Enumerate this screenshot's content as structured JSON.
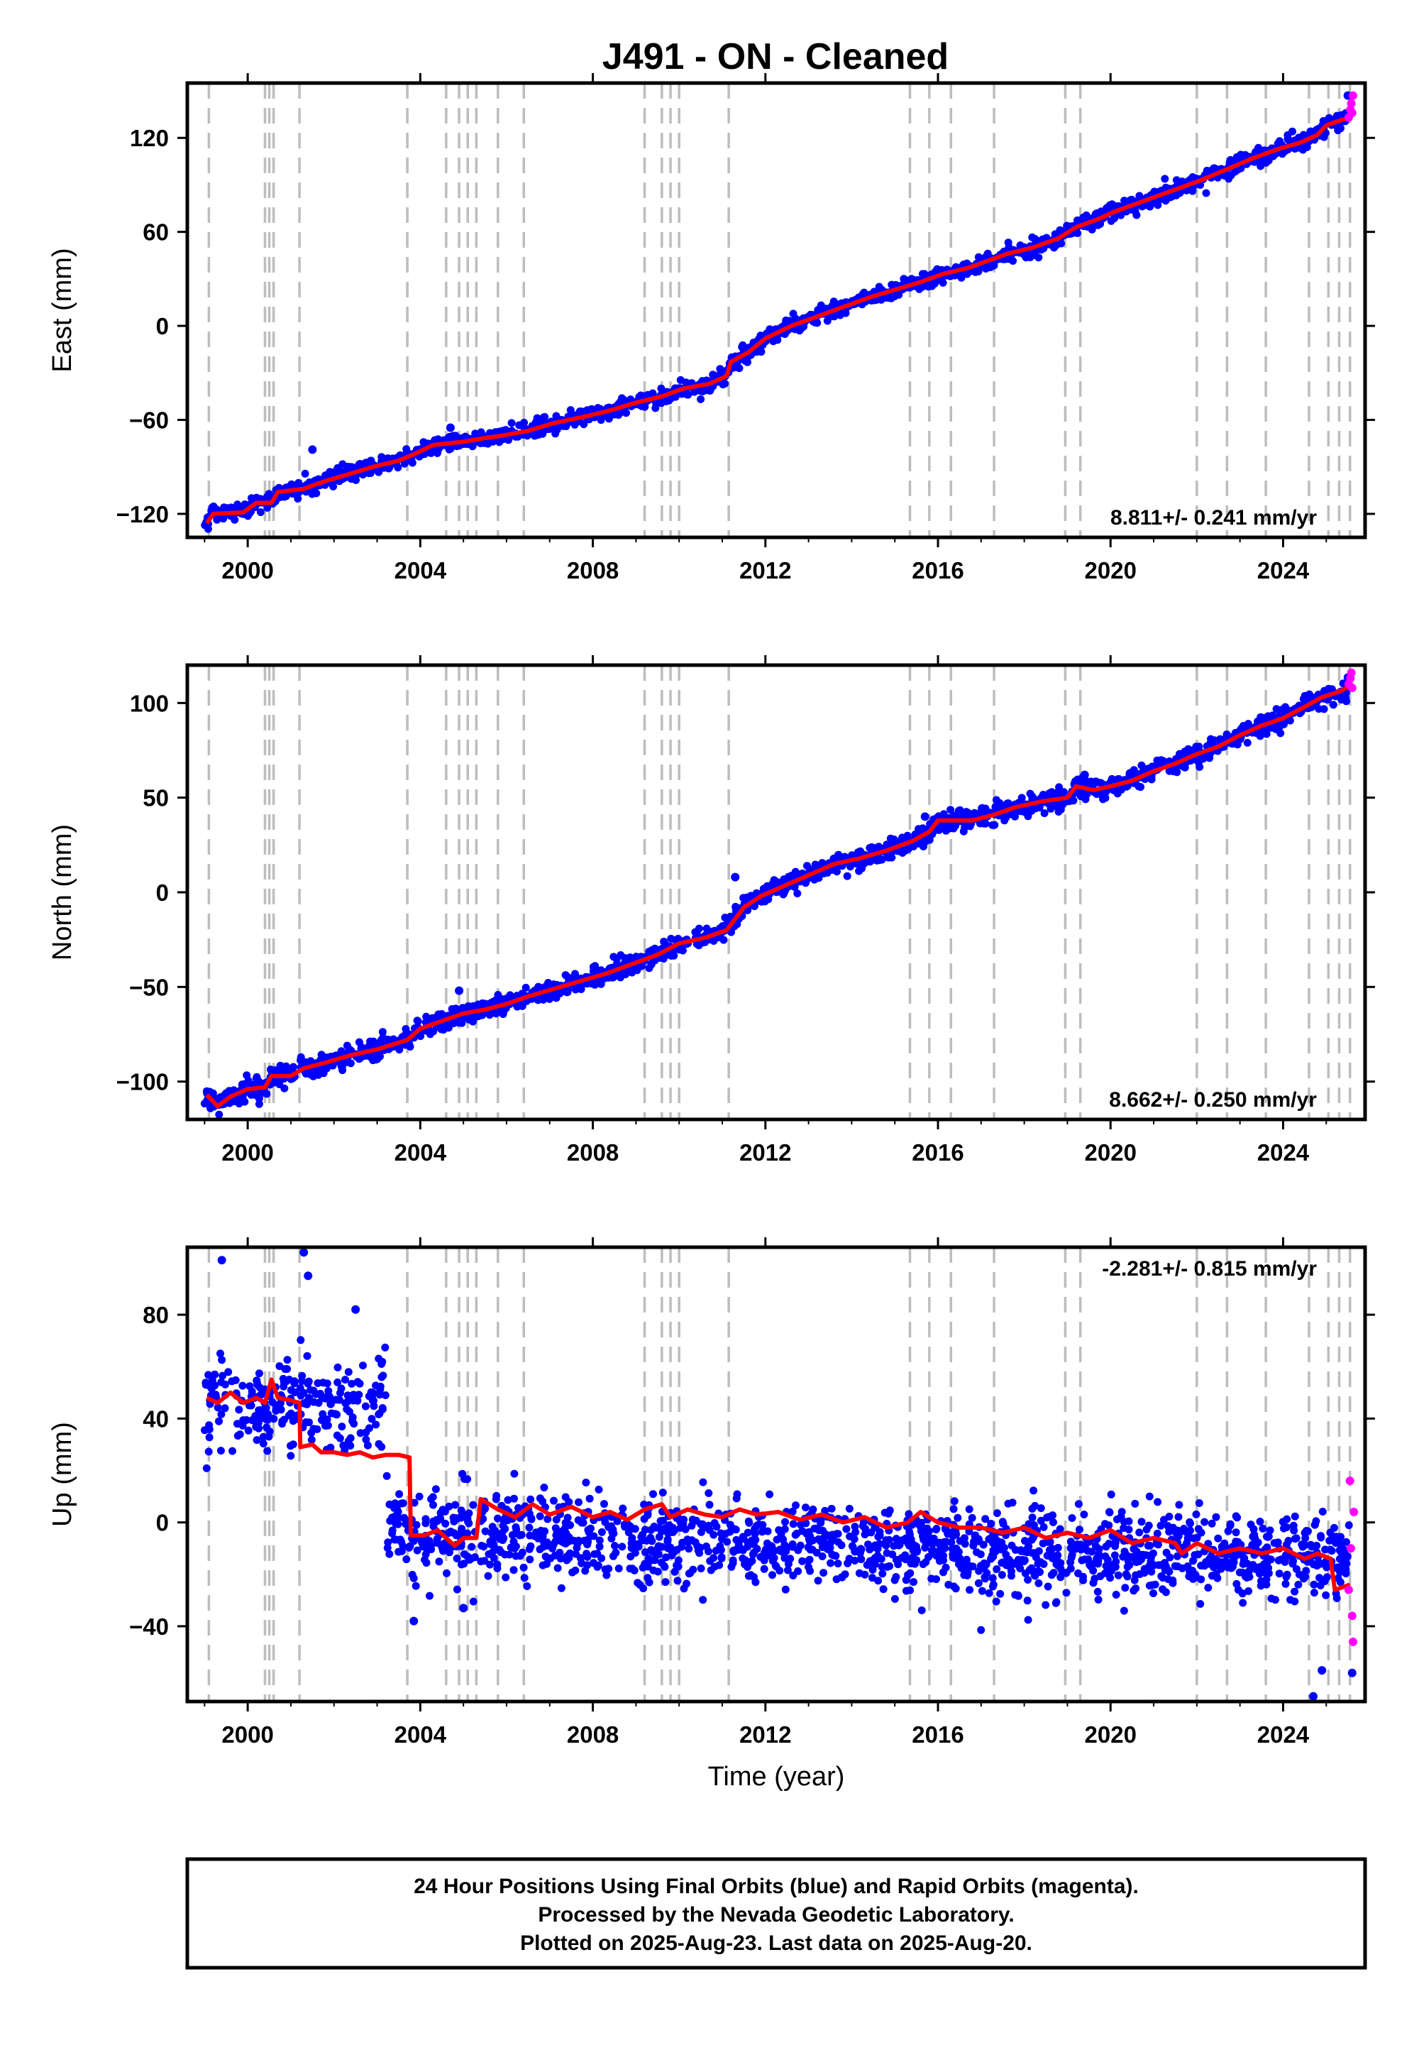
{
  "title": "J491  - ON - Cleaned",
  "colors": {
    "final": "#0000ff",
    "rapid": "#ff00ff",
    "model": "#ff0000",
    "steps": "#bdbdbd",
    "frame": "#000000"
  },
  "footer": {
    "line1": "24 Hour Positions Using Final Orbits (blue) and Rapid Orbits (magenta).",
    "line2": "Processed by the Nevada Geodetic Laboratory.",
    "line3": "Plotted on 2025-Aug-23. Last data on 2025-Aug-20."
  },
  "chart_data": [
    {
      "type": "scatter",
      "component": "east",
      "title": "J491  - ON - Cleaned",
      "xlabel": "",
      "ylabel": "East (mm)",
      "xlim": [
        1998.6,
        2025.9
      ],
      "ylim": [
        -135,
        155
      ],
      "xticks": [
        2000,
        2004,
        2008,
        2012,
        2016,
        2020,
        2024
      ],
      "yticks": [
        -120,
        -60,
        0,
        60,
        120
      ],
      "rate_label": "8.811+/- 0.241 mm/yr",
      "grid": false,
      "series": [
        {
          "name": "Final Orbits",
          "color": "#0000ff",
          "start": [
            1999.0,
            -126
          ],
          "end": [
            2025.5,
            132
          ],
          "scatter_mm": 2.5,
          "notable_points": [
            [
              2001.5,
              -79
            ],
            [
              2004.7,
              -65
            ],
            [
              2009.2,
              -45
            ],
            [
              2011.8,
              -14
            ],
            [
              2016.6,
              39
            ],
            [
              2021.6,
              85
            ],
            [
              2025.5,
              147
            ]
          ]
        },
        {
          "name": "Rapid Orbits",
          "color": "#ff00ff",
          "points": [
            [
              2025.52,
              133
            ],
            [
              2025.56,
              138
            ],
            [
              2025.58,
              142
            ],
            [
              2025.6,
              136
            ],
            [
              2025.62,
              147
            ]
          ]
        }
      ],
      "model_line": {
        "color": "#ff0000",
        "vertices": [
          [
            1999.05,
            -126
          ],
          [
            1999.2,
            -120
          ],
          [
            1999.9,
            -119
          ],
          [
            2000.2,
            -113
          ],
          [
            2000.55,
            -113
          ],
          [
            2000.7,
            -106
          ],
          [
            2001.3,
            -104
          ],
          [
            2001.8,
            -99
          ],
          [
            2002.3,
            -95
          ],
          [
            2002.9,
            -90
          ],
          [
            2003.5,
            -86
          ],
          [
            2003.85,
            -82
          ],
          [
            2004.3,
            -76
          ],
          [
            2005.0,
            -74
          ],
          [
            2005.4,
            -72
          ],
          [
            2005.9,
            -70
          ],
          [
            2006.5,
            -67
          ],
          [
            2007.1,
            -62
          ],
          [
            2007.8,
            -58
          ],
          [
            2008.4,
            -54
          ],
          [
            2009.0,
            -49
          ],
          [
            2009.6,
            -45
          ],
          [
            2010.1,
            -40
          ],
          [
            2010.7,
            -37
          ],
          [
            2011.1,
            -32
          ],
          [
            2011.2,
            -23
          ],
          [
            2011.6,
            -17
          ],
          [
            2012.0,
            -8
          ],
          [
            2012.6,
            0
          ],
          [
            2013.2,
            6
          ],
          [
            2013.8,
            12
          ],
          [
            2014.4,
            18
          ],
          [
            2015.0,
            23
          ],
          [
            2015.6,
            28
          ],
          [
            2016.1,
            33
          ],
          [
            2016.7,
            37
          ],
          [
            2017.2,
            42
          ],
          [
            2017.6,
            46
          ],
          [
            2018.2,
            50
          ],
          [
            2018.8,
            56
          ],
          [
            2019.2,
            63
          ],
          [
            2019.7,
            68
          ],
          [
            2020.1,
            73
          ],
          [
            2020.6,
            78
          ],
          [
            2021.0,
            82
          ],
          [
            2021.6,
            88
          ],
          [
            2022.1,
            93
          ],
          [
            2022.7,
            100
          ],
          [
            2023.3,
            107
          ],
          [
            2023.9,
            113
          ],
          [
            2024.4,
            117
          ],
          [
            2024.8,
            122
          ],
          [
            2025.0,
            128
          ],
          [
            2025.3,
            131
          ],
          [
            2025.55,
            133
          ]
        ]
      }
    },
    {
      "type": "scatter",
      "component": "north",
      "xlabel": "",
      "ylabel": "North (mm)",
      "xlim": [
        1998.6,
        2025.9
      ],
      "ylim": [
        -120,
        120
      ],
      "xticks": [
        2000,
        2004,
        2008,
        2012,
        2016,
        2020,
        2024
      ],
      "yticks": [
        -100,
        -50,
        0,
        50,
        100
      ],
      "rate_label": "8.662+/- 0.250 mm/yr",
      "grid": false,
      "series": [
        {
          "name": "Final Orbits",
          "color": "#0000ff",
          "start": [
            1999.0,
            -110
          ],
          "end": [
            2025.5,
            110
          ],
          "scatter_mm": 2.5,
          "notable_points": [
            [
              2004.9,
              -52
            ],
            [
              2007.6,
              -48
            ],
            [
              2011.3,
              8
            ],
            [
              2015.7,
              40
            ],
            [
              2019.4,
              62
            ],
            [
              2020.8,
              60
            ]
          ]
        },
        {
          "name": "Rapid Orbits",
          "color": "#ff00ff",
          "points": [
            [
              2025.52,
              110
            ],
            [
              2025.56,
              113
            ],
            [
              2025.58,
              116
            ],
            [
              2025.6,
              108
            ]
          ]
        }
      ],
      "model_line": {
        "color": "#ff0000",
        "vertices": [
          [
            1999.05,
            -107
          ],
          [
            1999.3,
            -113
          ],
          [
            1999.6,
            -108
          ],
          [
            2000.0,
            -104
          ],
          [
            2000.4,
            -103
          ],
          [
            2000.55,
            -97
          ],
          [
            2001.0,
            -97
          ],
          [
            2001.3,
            -93
          ],
          [
            2001.8,
            -90
          ],
          [
            2002.4,
            -86
          ],
          [
            2003.0,
            -83
          ],
          [
            2003.7,
            -78
          ],
          [
            2004.0,
            -72
          ],
          [
            2004.5,
            -68
          ],
          [
            2005.0,
            -64
          ],
          [
            2005.5,
            -62
          ],
          [
            2006.0,
            -59
          ],
          [
            2006.5,
            -55
          ],
          [
            2007.1,
            -51
          ],
          [
            2007.7,
            -47
          ],
          [
            2008.3,
            -43
          ],
          [
            2008.9,
            -38
          ],
          [
            2009.5,
            -33
          ],
          [
            2010.0,
            -27
          ],
          [
            2010.6,
            -24
          ],
          [
            2011.1,
            -20
          ],
          [
            2011.5,
            -8
          ],
          [
            2011.9,
            -2
          ],
          [
            2012.5,
            4
          ],
          [
            2013.1,
            10
          ],
          [
            2013.6,
            15
          ],
          [
            2014.2,
            18
          ],
          [
            2014.8,
            22
          ],
          [
            2015.4,
            27
          ],
          [
            2015.8,
            32
          ],
          [
            2016.0,
            38
          ],
          [
            2016.5,
            38
          ],
          [
            2016.8,
            38
          ],
          [
            2017.3,
            41
          ],
          [
            2017.8,
            45
          ],
          [
            2018.4,
            48
          ],
          [
            2019.0,
            50
          ],
          [
            2019.2,
            56
          ],
          [
            2019.6,
            54
          ],
          [
            2020.0,
            56
          ],
          [
            2020.5,
            59
          ],
          [
            2021.0,
            64
          ],
          [
            2021.5,
            68
          ],
          [
            2022.0,
            73
          ],
          [
            2022.5,
            77
          ],
          [
            2023.0,
            83
          ],
          [
            2023.5,
            88
          ],
          [
            2024.0,
            92
          ],
          [
            2024.5,
            98
          ],
          [
            2024.9,
            103
          ],
          [
            2025.3,
            106
          ],
          [
            2025.55,
            109
          ]
        ]
      }
    },
    {
      "type": "scatter",
      "component": "up",
      "xlabel": "Time (year)",
      "ylabel": "Up (mm)",
      "xlim": [
        1998.6,
        2025.9
      ],
      "ylim": [
        -69,
        106
      ],
      "xticks": [
        2000,
        2004,
        2008,
        2012,
        2016,
        2020,
        2024
      ],
      "yticks": [
        -40,
        0,
        40,
        80
      ],
      "rate_label": "-2.281+/- 0.815 mm/yr",
      "grid": false,
      "series": [
        {
          "name": "Final Orbits",
          "color": "#0000ff",
          "segments": [
            {
              "x_range": [
                1999.0,
                2003.2
              ],
              "mean_mm": 45,
              "scatter_mm": 9
            },
            {
              "x_range": [
                2003.2,
                2025.55
              ],
              "start_mm": -4,
              "end_mm": -14,
              "scatter_mm": 8
            }
          ],
          "notable_points": [
            [
              1999.4,
              101
            ],
            [
              2001.3,
              104
            ],
            [
              2001.4,
              95
            ],
            [
              2002.5,
              82
            ],
            [
              2003.85,
              -38
            ],
            [
              2005.0,
              -33
            ],
            [
              2024.7,
              -67
            ],
            [
              2024.9,
              -57
            ],
            [
              2025.6,
              -58
            ]
          ]
        },
        {
          "name": "Rapid Orbits",
          "color": "#ff00ff",
          "points": [
            [
              2025.52,
              -26
            ],
            [
              2025.55,
              16
            ],
            [
              2025.57,
              -10
            ],
            [
              2025.6,
              -36
            ],
            [
              2025.62,
              -46
            ],
            [
              2025.64,
              4
            ]
          ]
        }
      ],
      "model_line": {
        "color": "#ff0000",
        "vertices": [
          [
            1999.05,
            48
          ],
          [
            1999.3,
            46
          ],
          [
            1999.6,
            50
          ],
          [
            1999.9,
            46
          ],
          [
            2000.2,
            48
          ],
          [
            2000.4,
            46
          ],
          [
            2000.55,
            55
          ],
          [
            2000.7,
            48
          ],
          [
            2001.0,
            47
          ],
          [
            2001.2,
            46
          ],
          [
            2001.22,
            29
          ],
          [
            2001.5,
            30
          ],
          [
            2001.7,
            27
          ],
          [
            2002.0,
            27
          ],
          [
            2002.3,
            26
          ],
          [
            2002.6,
            27
          ],
          [
            2002.9,
            25
          ],
          [
            2003.2,
            26
          ],
          [
            2003.5,
            26
          ],
          [
            2003.75,
            25
          ],
          [
            2003.78,
            -5
          ],
          [
            2004.1,
            -5
          ],
          [
            2004.4,
            -3
          ],
          [
            2004.8,
            -9
          ],
          [
            2005.0,
            -6
          ],
          [
            2005.3,
            -6
          ],
          [
            2005.4,
            9
          ],
          [
            2005.8,
            5
          ],
          [
            2006.2,
            2
          ],
          [
            2006.6,
            7
          ],
          [
            2007.0,
            3
          ],
          [
            2007.5,
            6
          ],
          [
            2008.0,
            2
          ],
          [
            2008.4,
            4
          ],
          [
            2008.8,
            1
          ],
          [
            2009.2,
            5
          ],
          [
            2009.6,
            7
          ],
          [
            2009.8,
            2
          ],
          [
            2010.2,
            5
          ],
          [
            2010.6,
            3
          ],
          [
            2011.0,
            2
          ],
          [
            2011.4,
            5
          ],
          [
            2011.8,
            3
          ],
          [
            2012.3,
            4
          ],
          [
            2012.8,
            1
          ],
          [
            2013.3,
            3
          ],
          [
            2013.8,
            0
          ],
          [
            2014.3,
            2
          ],
          [
            2014.8,
            -2
          ],
          [
            2015.3,
            0
          ],
          [
            2015.6,
            4
          ],
          [
            2016.0,
            0
          ],
          [
            2016.5,
            -2
          ],
          [
            2017.0,
            -2
          ],
          [
            2017.5,
            -4
          ],
          [
            2018.0,
            -2
          ],
          [
            2018.5,
            -6
          ],
          [
            2019.0,
            -4
          ],
          [
            2019.5,
            -6
          ],
          [
            2020.0,
            -3
          ],
          [
            2020.5,
            -8
          ],
          [
            2021.0,
            -6
          ],
          [
            2021.5,
            -8
          ],
          [
            2021.65,
            -12
          ],
          [
            2022.0,
            -8
          ],
          [
            2022.5,
            -12
          ],
          [
            2023.0,
            -10
          ],
          [
            2023.5,
            -12
          ],
          [
            2024.0,
            -10
          ],
          [
            2024.5,
            -14
          ],
          [
            2024.8,
            -12
          ],
          [
            2025.1,
            -14
          ],
          [
            2025.2,
            -26
          ],
          [
            2025.55,
            -24
          ]
        ]
      }
    }
  ],
  "step_epochs": [
    1999.1,
    2000.4,
    2000.5,
    2000.6,
    2001.2,
    2003.7,
    2004.6,
    2004.9,
    2005.1,
    2005.3,
    2005.8,
    2006.4,
    2009.2,
    2009.6,
    2009.8,
    2010.0,
    2011.15,
    2015.35,
    2015.8,
    2016.3,
    2017.3,
    2018.95,
    2019.3,
    2022.0,
    2022.7,
    2023.6,
    2024.6,
    2025.05,
    2025.3,
    2025.55
  ]
}
